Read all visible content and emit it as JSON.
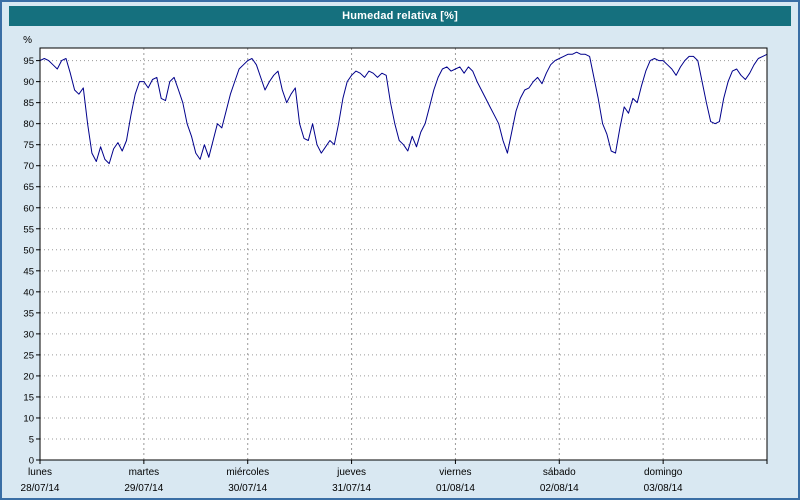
{
  "window": {
    "title": "Humedad relativa [%]"
  },
  "colors": {
    "header_bg": "#15707e",
    "header_text": "#ffffff",
    "page_bg": "#d9e8f2",
    "outer_border": "#3a6ea5",
    "plot_bg": "#ffffff",
    "plot_border": "#000000",
    "grid": "#9a9a9a",
    "line": "#00008b"
  },
  "chart_data": {
    "type": "line",
    "title": "Humedad relativa [%]",
    "ylabel": "%",
    "xlabel": "",
    "ylim": [
      0,
      98
    ],
    "ytick_start": 0,
    "ytick_step": 5,
    "ytick_end": 95,
    "grid": true,
    "legend_position": "none",
    "x_unit": "hours",
    "hours_per_day": 24,
    "days": [
      {
        "name": "lunes",
        "date": "28/07/14"
      },
      {
        "name": "martes",
        "date": "29/07/14"
      },
      {
        "name": "miércoles",
        "date": "30/07/14"
      },
      {
        "name": "jueves",
        "date": "31/07/14"
      },
      {
        "name": "viernes",
        "date": "01/08/14"
      },
      {
        "name": "sábado",
        "date": "02/08/14"
      },
      {
        "name": "domingo",
        "date": "03/08/14"
      }
    ],
    "series": [
      {
        "name": "Humedad relativa",
        "color": "#00008b",
        "values": [
          95,
          95.5,
          95,
          94,
          93,
          95,
          95.5,
          92,
          88,
          87,
          88.5,
          80,
          73,
          71,
          74.5,
          71.5,
          70.5,
          74,
          75.5,
          73.5,
          76,
          82,
          87,
          90,
          90,
          88.5,
          90.5,
          91,
          86,
          85.5,
          90,
          91,
          88,
          85,
          80,
          77,
          73,
          71.5,
          75,
          72,
          76,
          80,
          79,
          83,
          87,
          90,
          93,
          94,
          95,
          95.5,
          94,
          91,
          88,
          90,
          91.5,
          92.5,
          88,
          85,
          87,
          88.5,
          80,
          76.5,
          76,
          80,
          75,
          73,
          74.5,
          76,
          75,
          80,
          86,
          90,
          91.5,
          92.5,
          92,
          91,
          92.5,
          92,
          91,
          92,
          91.5,
          85,
          80,
          76,
          75,
          73.5,
          77,
          74.5,
          78,
          80,
          84,
          88,
          91,
          93,
          93.5,
          92.5,
          93,
          93.5,
          92,
          93.5,
          92.5,
          90,
          88,
          86,
          84,
          82,
          80,
          76,
          73,
          78,
          83,
          86,
          88,
          88.5,
          90,
          91,
          89.5,
          92,
          94,
          95,
          95.5,
          96,
          96.5,
          96.5,
          97,
          96.5,
          96.5,
          96,
          91,
          86,
          80,
          77.5,
          73.5,
          73,
          79,
          84,
          82.5,
          86,
          85,
          89,
          92.5,
          95,
          95.5,
          95,
          95,
          94,
          93,
          91.5,
          93.5,
          95,
          96,
          96,
          95,
          90,
          85,
          80.5,
          80,
          80.5,
          86,
          90,
          92.5,
          93,
          91.5,
          90.5,
          92,
          94,
          95.5,
          96,
          96.5
        ]
      }
    ]
  }
}
